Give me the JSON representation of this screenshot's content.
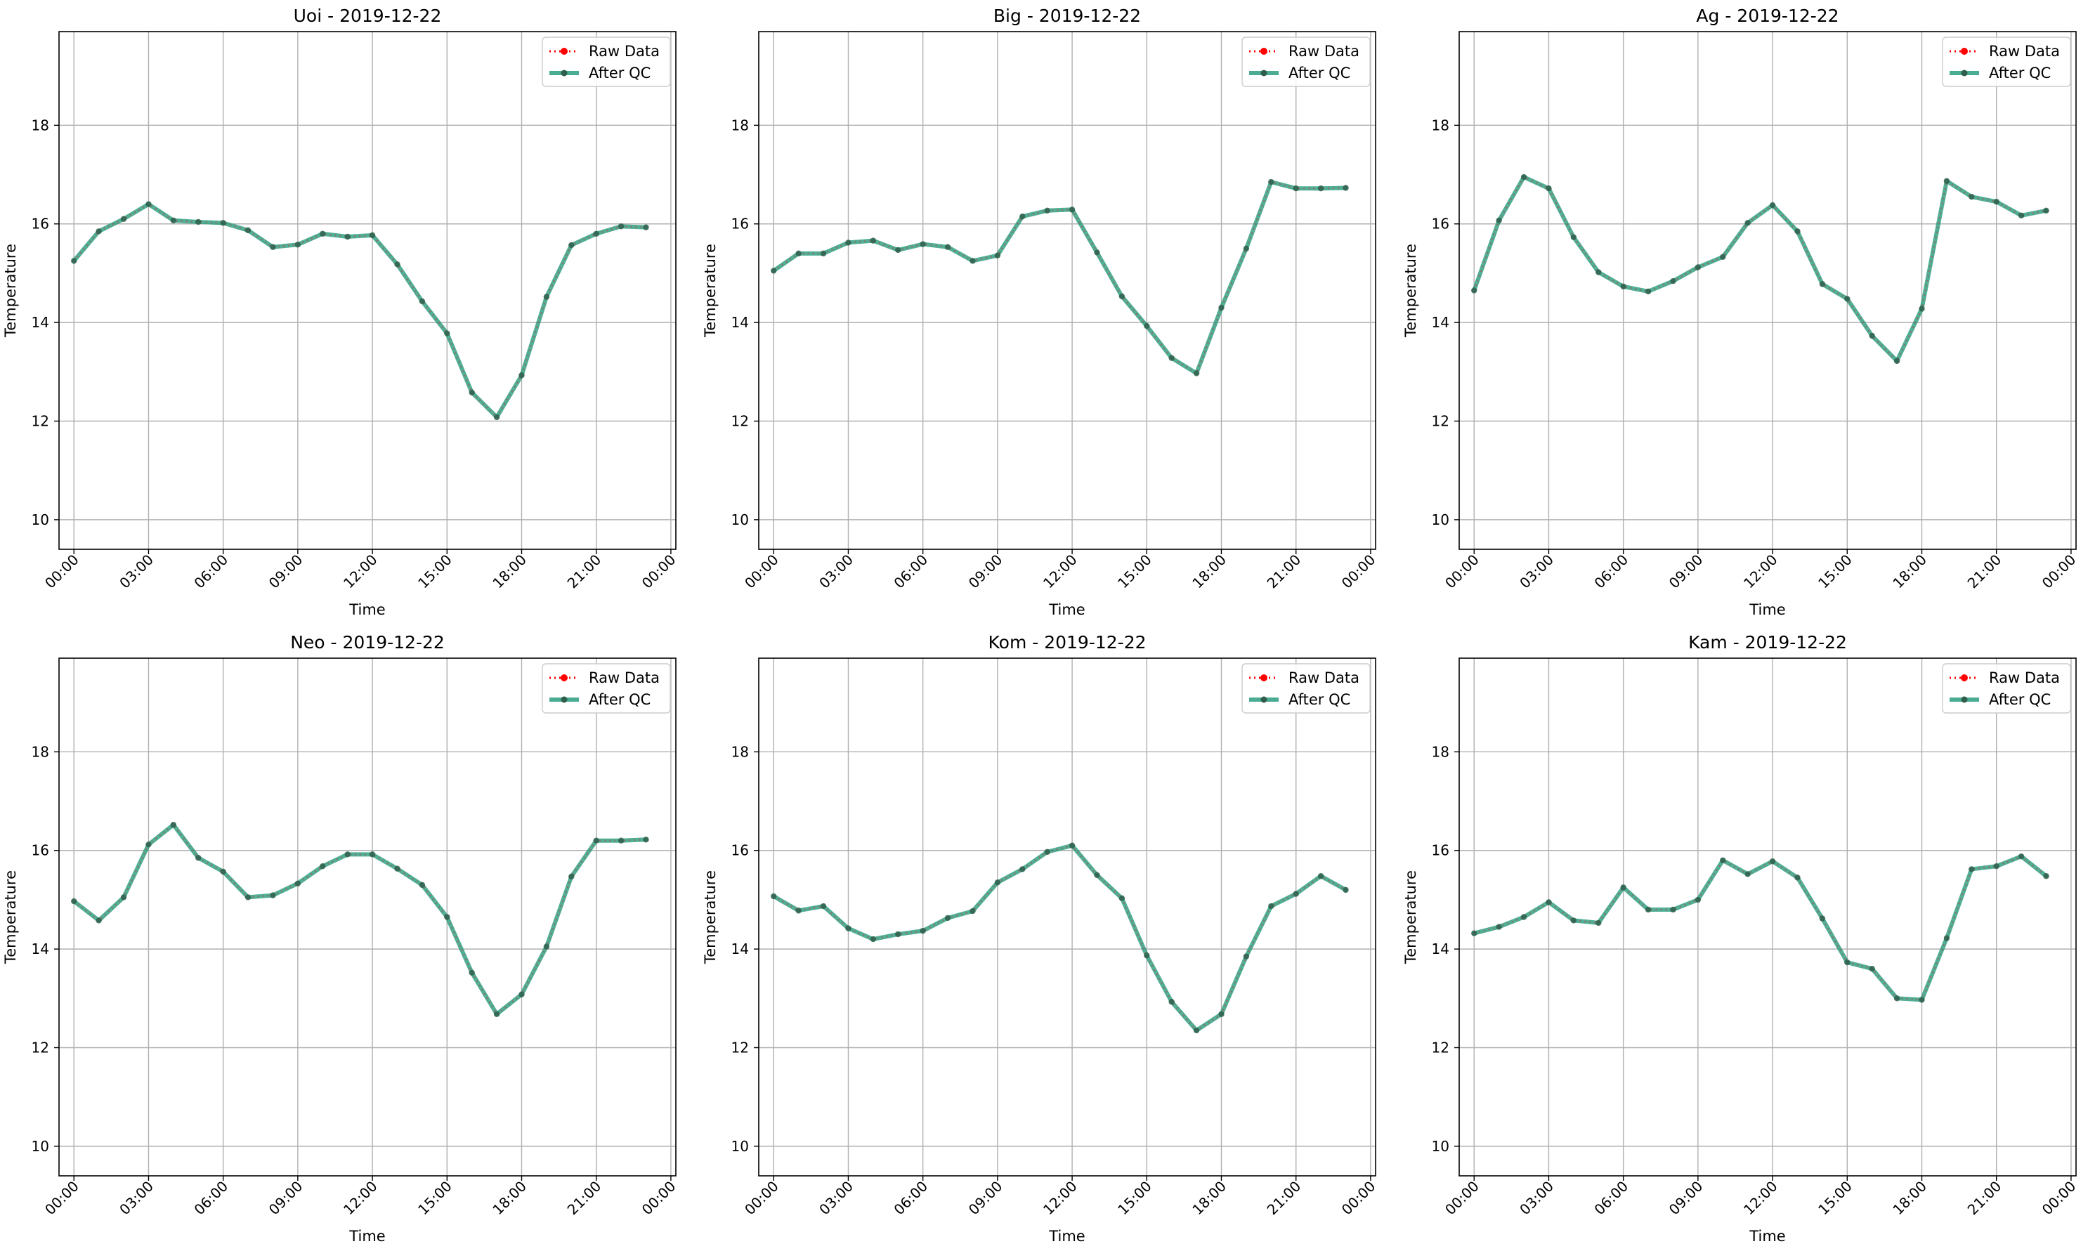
{
  "chart_data": [
    {
      "type": "line",
      "title": "Uoi - 2019-12-22",
      "xlabel": "Time",
      "ylabel": "Temperature",
      "ylim": [
        9.4,
        19.9
      ],
      "yticks": [
        10,
        12,
        14,
        16,
        18
      ],
      "xlim_hours": [
        -0.6,
        24.2
      ],
      "xticks": [
        "00:00",
        "03:00",
        "06:00",
        "09:00",
        "12:00",
        "15:00",
        "18:00",
        "21:00",
        "00:00"
      ],
      "grid": true,
      "legend_position": "upper right",
      "x": [
        "00:00",
        "01:00",
        "02:00",
        "03:00",
        "04:00",
        "05:00",
        "06:00",
        "07:00",
        "08:00",
        "09:00",
        "10:00",
        "11:00",
        "12:00",
        "13:00",
        "14:00",
        "15:00",
        "16:00",
        "17:00",
        "18:00",
        "19:00",
        "20:00",
        "21:00",
        "22:00",
        "23:00"
      ],
      "series": [
        {
          "name": "Raw Data",
          "values": [
            15.25,
            15.85,
            16.1,
            16.4,
            16.07,
            16.04,
            16.02,
            15.87,
            15.53,
            15.58,
            15.8,
            15.74,
            15.77,
            15.18,
            14.43,
            13.78,
            12.58,
            12.08,
            12.93,
            14.52,
            15.57,
            15.8,
            15.95,
            15.93
          ]
        },
        {
          "name": "After QC",
          "values": [
            15.25,
            15.85,
            16.1,
            16.4,
            16.07,
            16.04,
            16.02,
            15.87,
            15.53,
            15.58,
            15.8,
            15.74,
            15.77,
            15.18,
            14.43,
            13.78,
            12.58,
            12.08,
            12.93,
            14.52,
            15.57,
            15.8,
            15.95,
            15.93
          ]
        }
      ]
    },
    {
      "type": "line",
      "title": "Big - 2019-12-22",
      "xlabel": "Time",
      "ylabel": "Temperature",
      "ylim": [
        9.4,
        19.9
      ],
      "yticks": [
        10,
        12,
        14,
        16,
        18
      ],
      "xlim_hours": [
        -0.6,
        24.2
      ],
      "xticks": [
        "00:00",
        "03:00",
        "06:00",
        "09:00",
        "12:00",
        "15:00",
        "18:00",
        "21:00",
        "00:00"
      ],
      "grid": true,
      "legend_position": "upper right",
      "x": [
        "00:00",
        "01:00",
        "02:00",
        "03:00",
        "04:00",
        "05:00",
        "06:00",
        "07:00",
        "08:00",
        "09:00",
        "10:00",
        "11:00",
        "12:00",
        "13:00",
        "14:00",
        "15:00",
        "16:00",
        "17:00",
        "18:00",
        "19:00",
        "20:00",
        "21:00",
        "22:00",
        "23:00"
      ],
      "series": [
        {
          "name": "Raw Data",
          "values": [
            15.05,
            15.4,
            15.4,
            15.62,
            15.66,
            15.47,
            15.59,
            15.53,
            15.25,
            15.36,
            16.15,
            16.27,
            16.29,
            15.42,
            14.53,
            13.93,
            13.28,
            12.97,
            14.3,
            15.5,
            16.85,
            16.72,
            16.72,
            16.73
          ]
        },
        {
          "name": "After QC",
          "values": [
            15.05,
            15.4,
            15.4,
            15.62,
            15.66,
            15.47,
            15.59,
            15.53,
            15.25,
            15.36,
            16.15,
            16.27,
            16.29,
            15.42,
            14.53,
            13.93,
            13.28,
            12.97,
            14.3,
            15.5,
            16.85,
            16.72,
            16.72,
            16.73
          ]
        }
      ]
    },
    {
      "type": "line",
      "title": "Ag - 2019-12-22",
      "xlabel": "Time",
      "ylabel": "Temperature",
      "ylim": [
        9.4,
        19.9
      ],
      "yticks": [
        10,
        12,
        14,
        16,
        18
      ],
      "xlim_hours": [
        -0.6,
        24.2
      ],
      "xticks": [
        "00:00",
        "03:00",
        "06:00",
        "09:00",
        "12:00",
        "15:00",
        "18:00",
        "21:00",
        "00:00"
      ],
      "grid": true,
      "legend_position": "upper right",
      "x": [
        "00:00",
        "01:00",
        "02:00",
        "03:00",
        "04:00",
        "05:00",
        "06:00",
        "07:00",
        "08:00",
        "09:00",
        "10:00",
        "11:00",
        "12:00",
        "13:00",
        "14:00",
        "15:00",
        "16:00",
        "17:00",
        "18:00",
        "19:00",
        "20:00",
        "21:00",
        "22:00",
        "23:00"
      ],
      "series": [
        {
          "name": "Raw Data",
          "values": [
            14.65,
            16.07,
            16.95,
            16.72,
            15.73,
            15.02,
            14.73,
            14.63,
            14.84,
            15.12,
            15.33,
            16.02,
            16.38,
            15.85,
            14.78,
            14.48,
            13.73,
            13.22,
            14.28,
            16.87,
            16.55,
            16.45,
            16.17,
            16.27
          ]
        },
        {
          "name": "After QC",
          "values": [
            14.65,
            16.07,
            16.95,
            16.72,
            15.73,
            15.02,
            14.73,
            14.63,
            14.84,
            15.12,
            15.33,
            16.02,
            16.38,
            15.85,
            14.78,
            14.48,
            13.73,
            13.22,
            14.28,
            16.87,
            16.55,
            16.45,
            16.17,
            16.27
          ]
        }
      ]
    },
    {
      "type": "line",
      "title": "Neo - 2019-12-22",
      "xlabel": "Time",
      "ylabel": "Temperature",
      "ylim": [
        9.4,
        19.9
      ],
      "yticks": [
        10,
        12,
        14,
        16,
        18
      ],
      "xlim_hours": [
        -0.6,
        24.2
      ],
      "xticks": [
        "00:00",
        "03:00",
        "06:00",
        "09:00",
        "12:00",
        "15:00",
        "18:00",
        "21:00",
        "00:00"
      ],
      "grid": true,
      "legend_position": "upper right",
      "x": [
        "00:00",
        "01:00",
        "02:00",
        "03:00",
        "04:00",
        "05:00",
        "06:00",
        "07:00",
        "08:00",
        "09:00",
        "10:00",
        "11:00",
        "12:00",
        "13:00",
        "14:00",
        "15:00",
        "16:00",
        "17:00",
        "18:00",
        "19:00",
        "20:00",
        "21:00",
        "22:00",
        "23:00"
      ],
      "series": [
        {
          "name": "Raw Data",
          "values": [
            14.97,
            14.58,
            15.05,
            16.12,
            16.52,
            15.85,
            15.57,
            15.05,
            15.09,
            15.33,
            15.68,
            15.92,
            15.92,
            15.63,
            15.3,
            14.65,
            13.52,
            12.68,
            13.08,
            14.05,
            15.47,
            16.2,
            16.2,
            16.22
          ]
        },
        {
          "name": "After QC",
          "values": [
            14.97,
            14.58,
            15.05,
            16.12,
            16.52,
            15.85,
            15.57,
            15.05,
            15.09,
            15.33,
            15.68,
            15.92,
            15.92,
            15.63,
            15.3,
            14.65,
            13.52,
            12.68,
            13.08,
            14.05,
            15.47,
            16.2,
            16.2,
            16.22
          ]
        }
      ]
    },
    {
      "type": "line",
      "title": "Kom - 2019-12-22",
      "xlabel": "Time",
      "ylabel": "Temperature",
      "ylim": [
        9.4,
        19.9
      ],
      "yticks": [
        10,
        12,
        14,
        16,
        18
      ],
      "xlim_hours": [
        -0.6,
        24.2
      ],
      "xticks": [
        "00:00",
        "03:00",
        "06:00",
        "09:00",
        "12:00",
        "15:00",
        "18:00",
        "21:00",
        "00:00"
      ],
      "grid": true,
      "legend_position": "upper right",
      "x": [
        "00:00",
        "01:00",
        "02:00",
        "03:00",
        "04:00",
        "05:00",
        "06:00",
        "07:00",
        "08:00",
        "09:00",
        "10:00",
        "11:00",
        "12:00",
        "13:00",
        "14:00",
        "15:00",
        "16:00",
        "17:00",
        "18:00",
        "19:00",
        "20:00",
        "21:00",
        "22:00",
        "23:00"
      ],
      "series": [
        {
          "name": "Raw Data",
          "values": [
            15.07,
            14.78,
            14.87,
            14.42,
            14.2,
            14.3,
            14.37,
            14.63,
            14.77,
            15.35,
            15.62,
            15.97,
            16.1,
            15.5,
            15.03,
            13.87,
            12.93,
            12.35,
            12.68,
            13.85,
            14.87,
            15.12,
            15.48,
            15.2
          ]
        },
        {
          "name": "After QC",
          "values": [
            15.07,
            14.78,
            14.87,
            14.42,
            14.2,
            14.3,
            14.37,
            14.63,
            14.77,
            15.35,
            15.62,
            15.97,
            16.1,
            15.5,
            15.03,
            13.87,
            12.93,
            12.35,
            12.68,
            13.85,
            14.87,
            15.12,
            15.48,
            15.2
          ]
        }
      ]
    },
    {
      "type": "line",
      "title": "Kam - 2019-12-22",
      "xlabel": "Time",
      "ylabel": "Temperature",
      "ylim": [
        9.4,
        19.9
      ],
      "yticks": [
        10,
        12,
        14,
        16,
        18
      ],
      "xlim_hours": [
        -0.6,
        24.2
      ],
      "xticks": [
        "00:00",
        "03:00",
        "06:00",
        "09:00",
        "12:00",
        "15:00",
        "18:00",
        "21:00",
        "00:00"
      ],
      "grid": true,
      "legend_position": "upper right",
      "x": [
        "00:00",
        "01:00",
        "02:00",
        "03:00",
        "04:00",
        "05:00",
        "06:00",
        "07:00",
        "08:00",
        "09:00",
        "10:00",
        "11:00",
        "12:00",
        "13:00",
        "14:00",
        "15:00",
        "16:00",
        "17:00",
        "18:00",
        "19:00",
        "20:00",
        "21:00",
        "22:00",
        "23:00"
      ],
      "series": [
        {
          "name": "Raw Data",
          "values": [
            14.32,
            14.45,
            14.65,
            14.95,
            14.58,
            14.53,
            15.25,
            14.8,
            14.8,
            15.0,
            15.8,
            15.52,
            15.78,
            15.45,
            14.62,
            13.73,
            13.6,
            13.0,
            12.97,
            14.22,
            15.62,
            15.68,
            15.88,
            15.48
          ]
        },
        {
          "name": "After QC",
          "values": [
            14.32,
            14.45,
            14.65,
            14.95,
            14.58,
            14.53,
            15.25,
            14.8,
            14.8,
            15.0,
            15.8,
            15.52,
            15.78,
            15.45,
            14.62,
            13.73,
            13.6,
            13.0,
            12.97,
            14.22,
            15.62,
            15.68,
            15.88,
            15.48
          ]
        }
      ]
    }
  ],
  "colors": {
    "raw": "#ff0000",
    "qc": "#2a9d7f",
    "grid": "#b0b0b0",
    "axis": "#000000",
    "legend_border": "#cccccc"
  }
}
